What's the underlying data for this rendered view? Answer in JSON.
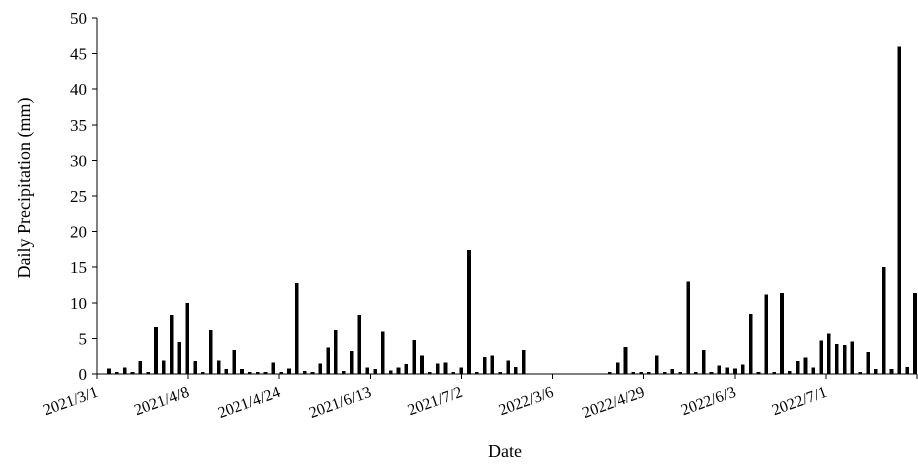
{
  "chart_data": {
    "type": "bar",
    "title": "",
    "xlabel": "Date",
    "ylabel": "Daily  Precipitation (mm)",
    "ylim": [
      0,
      50
    ],
    "yticks": [
      0,
      5,
      10,
      15,
      20,
      25,
      30,
      35,
      40,
      45,
      50
    ],
    "grid": false,
    "legend": "none",
    "x_tick_labels": [
      "2021/3/1",
      "2021/4/8",
      "2021/4/24",
      "2021/6/13",
      "2021/7/2",
      "2022/3/6",
      "2022/4/29",
      "2022/6/3",
      "2022/7/1"
    ],
    "series": [
      {
        "color": "#000000",
        "values": [
          0.8,
          0.3,
          0.9,
          0.3,
          1.8,
          0.3,
          6.6,
          1.9,
          8.3,
          4.5,
          10.0,
          1.8,
          0.3,
          6.2,
          1.9,
          0.7,
          3.4,
          0.7,
          0.3,
          0.3,
          0.3,
          1.6,
          0.3,
          0.8,
          12.8,
          0.4,
          0.3,
          1.5,
          3.7,
          6.2,
          0.4,
          3.2,
          8.3,
          0.9,
          0.7,
          6.0,
          0.5,
          0.9,
          1.4,
          4.8,
          2.6,
          0.3,
          1.5,
          1.6,
          0.3,
          0.9,
          17.4,
          0.3,
          2.4,
          2.6,
          0.3,
          1.9,
          1.0,
          3.4,
          0,
          0,
          0,
          0,
          0,
          0,
          0,
          0,
          0,
          0,
          0.3,
          1.6,
          3.8,
          0.3,
          0.3,
          0.3,
          2.6,
          0.3,
          0.7,
          0.3,
          13.0,
          0.3,
          3.4,
          0.3,
          1.2,
          0.9,
          0.8,
          1.3,
          8.4,
          0.3,
          11.2,
          0.3,
          11.4,
          0.4,
          1.8,
          2.3,
          0.9,
          4.7,
          5.7,
          4.2,
          4.1,
          4.6,
          0.3,
          3.1,
          0.7,
          15.0,
          0.7,
          46.0,
          1.0,
          11.4
        ]
      }
    ]
  }
}
